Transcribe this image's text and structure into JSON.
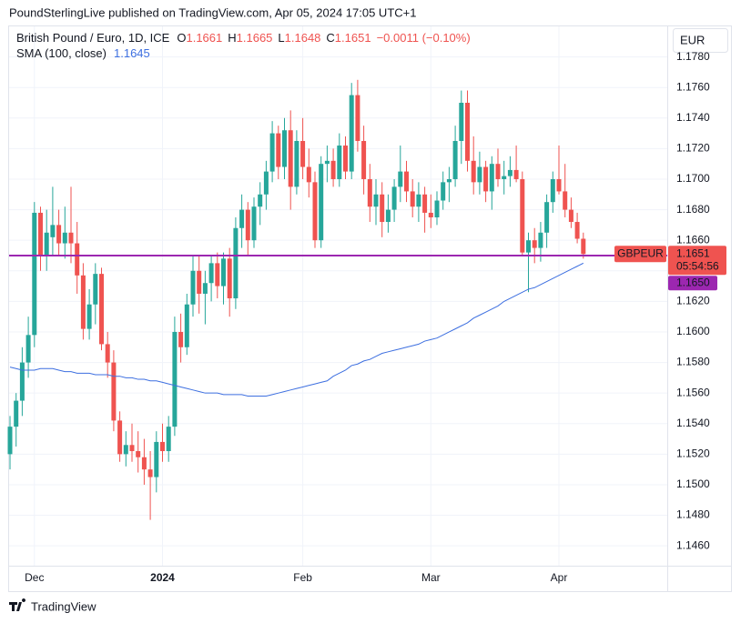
{
  "header": {
    "title": "PoundSterlingLive published on TradingView.com, Apr 05, 2024 17:05 UTC+1"
  },
  "chart_data": {
    "type": "candlestick",
    "title": "British Pound / Euro, 1D, ICE",
    "legend_labels": {
      "open": "O",
      "high": "H",
      "low": "L",
      "close": "C"
    },
    "change_label": "−0.0011 (−0.10%)",
    "currency": "EUR",
    "symbol": "GBPEUR",
    "countdown": "05:54:56",
    "colors": {
      "up": "#26a69a",
      "down": "#ef5350"
    },
    "categories": [
      null,
      null,
      null,
      null,
      "Dec",
      null,
      null,
      null,
      null,
      null,
      null,
      null,
      null,
      null,
      null,
      null,
      null,
      null,
      null,
      null,
      null,
      null,
      null,
      null,
      null,
      "2024",
      null,
      null,
      null,
      null,
      null,
      null,
      null,
      null,
      null,
      null,
      null,
      null,
      null,
      null,
      null,
      null,
      null,
      null,
      null,
      null,
      null,
      null,
      "Feb",
      null,
      null,
      null,
      null,
      null,
      null,
      null,
      null,
      null,
      null,
      null,
      null,
      null,
      null,
      null,
      null,
      null,
      null,
      null,
      null,
      "Mar",
      null,
      null,
      null,
      null,
      null,
      null,
      null,
      null,
      null,
      null,
      null,
      null,
      null,
      null,
      null,
      null,
      null,
      null,
      null,
      null,
      "Apr",
      null,
      null,
      null,
      null
    ],
    "open": [
      1.152,
      1.1538,
      1.1555,
      1.158,
      1.1598,
      1.1678,
      1.165,
      1.1662,
      1.167,
      1.1658,
      1.1665,
      1.1658,
      1.1637,
      1.1602,
      1.1618,
      1.1638,
      1.1592,
      1.158,
      1.1542,
      1.152,
      1.1526,
      1.1522,
      1.1518,
      1.151,
      1.1505,
      1.1528,
      1.1522,
      1.1538,
      1.16,
      1.159,
      1.1618,
      1.164,
      1.1625,
      1.1632,
      1.1645,
      1.163,
      1.1648,
      1.1622,
      1.1668,
      1.168,
      1.166,
      1.1682,
      1.169,
      1.1705,
      1.173,
      1.1708,
      1.1732,
      1.1695,
      1.1725,
      1.1708,
      1.1698,
      1.166,
      1.171,
      1.1712,
      1.17,
      1.1722,
      1.1705,
      1.1755,
      1.1725,
      1.17,
      1.1682,
      1.169,
      1.1672,
      1.168,
      1.1695,
      1.1705,
      1.1692,
      1.1682,
      1.169,
      1.1678,
      1.1675,
      1.1686,
      1.1698,
      1.17,
      1.1725,
      1.175,
      1.1712,
      1.1698,
      1.1708,
      1.1692,
      1.171,
      1.17,
      1.1702,
      1.1706,
      1.17,
      1.1652,
      1.166,
      1.1655,
      1.1665,
      1.1685,
      1.17,
      1.1692,
      1.168,
      1.1672,
      1.1661
    ],
    "high": [
      1.1545,
      1.156,
      1.159,
      1.161,
      1.1685,
      1.1682,
      1.168,
      1.1695,
      1.168,
      1.1682,
      1.1695,
      1.1672,
      1.1645,
      1.1628,
      1.1645,
      1.1642,
      1.16,
      1.1588,
      1.1548,
      1.1535,
      1.154,
      1.1535,
      1.153,
      1.1522,
      1.1535,
      1.154,
      1.1545,
      1.161,
      1.1612,
      1.1625,
      1.165,
      1.165,
      1.164,
      1.165,
      1.1652,
      1.1652,
      1.1655,
      1.1675,
      1.169,
      1.1685,
      1.1688,
      1.1698,
      1.1712,
      1.1738,
      1.1735,
      1.174,
      1.1745,
      1.1732,
      1.174,
      1.172,
      1.1705,
      1.1715,
      1.1722,
      1.172,
      1.173,
      1.1728,
      1.1763,
      1.1765,
      1.1735,
      1.171,
      1.17,
      1.1698,
      1.169,
      1.17,
      1.1722,
      1.1712,
      1.17,
      1.1698,
      1.1695,
      1.169,
      1.1692,
      1.1705,
      1.1708,
      1.1735,
      1.1758,
      1.1758,
      1.1728,
      1.1718,
      1.1712,
      1.1715,
      1.172,
      1.1712,
      1.1715,
      1.1722,
      1.1705,
      1.1665,
      1.1668,
      1.1672,
      1.169,
      1.1705,
      1.1722,
      1.171,
      1.1688,
      1.1678,
      1.1665
    ],
    "low": [
      1.151,
      1.1525,
      1.1545,
      1.157,
      1.159,
      1.164,
      1.164,
      1.165,
      1.165,
      1.1648,
      1.1645,
      1.1625,
      1.1595,
      1.1595,
      1.1605,
      1.1588,
      1.157,
      1.1535,
      1.1515,
      1.1512,
      1.1515,
      1.1508,
      1.15,
      1.1477,
      1.1495,
      1.1515,
      1.1515,
      1.1532,
      1.158,
      1.1585,
      1.161,
      1.1612,
      1.1605,
      1.162,
      1.1622,
      1.1618,
      1.161,
      1.1615,
      1.1655,
      1.165,
      1.1655,
      1.167,
      1.168,
      1.1698,
      1.17,
      1.17,
      1.168,
      1.169,
      1.17,
      1.1688,
      1.1655,
      1.1655,
      1.1698,
      1.1695,
      1.1695,
      1.17,
      1.17,
      1.1718,
      1.169,
      1.1672,
      1.167,
      1.1662,
      1.1665,
      1.1672,
      1.1685,
      1.1685,
      1.1675,
      1.1672,
      1.1665,
      1.1668,
      1.167,
      1.168,
      1.1685,
      1.1695,
      1.171,
      1.1705,
      1.169,
      1.169,
      1.1685,
      1.168,
      1.1695,
      1.169,
      1.1695,
      1.1698,
      1.165,
      1.1626,
      1.1645,
      1.1646,
      1.1655,
      1.1678,
      1.169,
      1.1675,
      1.1668,
      1.1658,
      1.1648
    ],
    "close": [
      1.1538,
      1.1555,
      1.158,
      1.1598,
      1.1678,
      1.165,
      1.1665,
      1.167,
      1.1658,
      1.1665,
      1.1658,
      1.1637,
      1.1602,
      1.1618,
      1.1638,
      1.1592,
      1.158,
      1.1542,
      1.152,
      1.1526,
      1.1522,
      1.1518,
      1.151,
      1.1505,
      1.1528,
      1.1522,
      1.1538,
      1.16,
      1.159,
      1.1618,
      1.164,
      1.1625,
      1.1632,
      1.1645,
      1.163,
      1.1648,
      1.1622,
      1.1668,
      1.168,
      1.166,
      1.1682,
      1.169,
      1.1705,
      1.173,
      1.1708,
      1.1732,
      1.1695,
      1.1725,
      1.1708,
      1.1698,
      1.166,
      1.171,
      1.1712,
      1.17,
      1.1722,
      1.1705,
      1.1755,
      1.1725,
      1.17,
      1.1682,
      1.169,
      1.1672,
      1.168,
      1.1695,
      1.1705,
      1.1692,
      1.1682,
      1.169,
      1.1678,
      1.1675,
      1.1686,
      1.1698,
      1.17,
      1.1725,
      1.175,
      1.1712,
      1.1698,
      1.1708,
      1.1692,
      1.171,
      1.17,
      1.1702,
      1.1706,
      1.17,
      1.1652,
      1.166,
      1.1655,
      1.1665,
      1.1685,
      1.17,
      1.1692,
      1.168,
      1.1672,
      1.1661,
      1.1651
    ],
    "series": [
      {
        "name": "SMA (100, close)",
        "color": "#3d6fe0",
        "values": [
          1.1577,
          1.1576,
          1.1575,
          1.1575,
          1.1575,
          1.1576,
          1.1576,
          1.1576,
          1.1575,
          1.1574,
          1.1574,
          1.1573,
          1.1573,
          1.1573,
          1.1572,
          1.1572,
          1.1572,
          1.1571,
          1.1571,
          1.157,
          1.157,
          1.1569,
          1.1569,
          1.1568,
          1.1568,
          1.1567,
          1.1566,
          1.1565,
          1.1564,
          1.1563,
          1.1562,
          1.1561,
          1.156,
          1.156,
          1.156,
          1.1559,
          1.1559,
          1.1559,
          1.1559,
          1.1558,
          1.1558,
          1.1558,
          1.1558,
          1.1559,
          1.156,
          1.1561,
          1.1562,
          1.1563,
          1.1564,
          1.1565,
          1.1566,
          1.1567,
          1.1568,
          1.1571,
          1.1573,
          1.1575,
          1.1578,
          1.1579,
          1.1581,
          1.1582,
          1.1584,
          1.1586,
          1.1587,
          1.1588,
          1.1589,
          1.159,
          1.1591,
          1.1592,
          1.1594,
          1.1595,
          1.1596,
          1.1598,
          1.16,
          1.1602,
          1.1604,
          1.1606,
          1.1609,
          1.1611,
          1.1613,
          1.1615,
          1.1617,
          1.162,
          1.1622,
          1.1624,
          1.1626,
          1.1628,
          1.1629,
          1.1631,
          1.1633,
          1.1635,
          1.1637,
          1.1639,
          1.1641,
          1.1643,
          1.1645
        ]
      }
    ],
    "hline": {
      "value": 1.165,
      "label": "1.1650",
      "color": "#9c27b0"
    },
    "ylim": [
      1.1447,
      1.18
    ],
    "yticks": [
      {
        "value": 1.146,
        "label": "1.1460"
      },
      {
        "value": 1.148,
        "label": "1.1480"
      },
      {
        "value": 1.15,
        "label": "1.1500"
      },
      {
        "value": 1.152,
        "label": "1.1520"
      },
      {
        "value": 1.154,
        "label": "1.1540"
      },
      {
        "value": 1.156,
        "label": "1.1560"
      },
      {
        "value": 1.158,
        "label": "1.1580"
      },
      {
        "value": 1.16,
        "label": "1.1600"
      },
      {
        "value": 1.162,
        "label": "1.1620"
      },
      {
        "value": 1.164,
        "label": "1.1640"
      },
      {
        "value": 1.166,
        "label": "1.1660"
      },
      {
        "value": 1.168,
        "label": "1.1680"
      },
      {
        "value": 1.17,
        "label": "1.1700"
      },
      {
        "value": 1.172,
        "label": "1.1720"
      },
      {
        "value": 1.174,
        "label": "1.1740"
      },
      {
        "value": 1.176,
        "label": "1.1760"
      },
      {
        "value": 1.178,
        "label": "1.1780"
      }
    ],
    "grid": true
  },
  "footer": {
    "brand": "TradingView"
  }
}
